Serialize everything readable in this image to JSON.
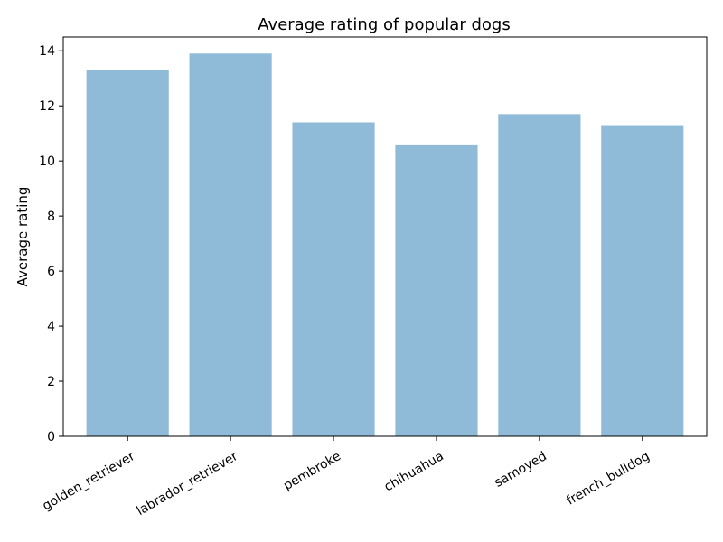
{
  "chart_data": {
    "type": "bar",
    "title": "Average rating of popular dogs",
    "xlabel": "",
    "ylabel": "Average rating",
    "categories": [
      "golden_retriever",
      "labrador_retriever",
      "pembroke",
      "chihuahua",
      "samoyed",
      "french_bulldog"
    ],
    "values": [
      13.3,
      13.9,
      11.4,
      10.6,
      11.7,
      11.3
    ],
    "ylim": [
      0,
      14.5
    ],
    "yticks": [
      0,
      2,
      4,
      6,
      8,
      10,
      12,
      14
    ],
    "grid": false,
    "legend": "none",
    "bar_color": "#8fbad8"
  }
}
